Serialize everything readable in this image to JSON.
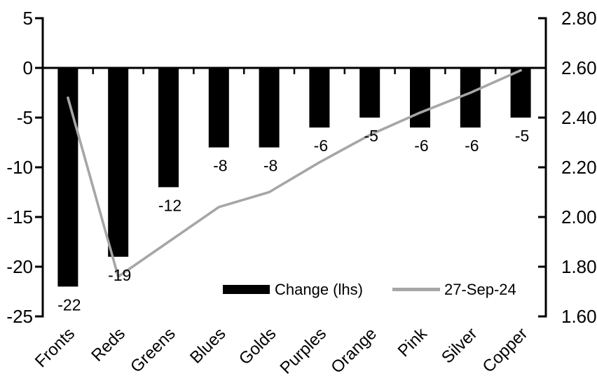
{
  "chart_data": {
    "type": "combo",
    "categories": [
      "Fronts",
      "Reds",
      "Greens",
      "Blues",
      "Golds",
      "Purples",
      "Orange",
      "Pink",
      "Silver",
      "Copper"
    ],
    "series": [
      {
        "name": "Change (lhs)",
        "type": "bar",
        "axis": "left",
        "color": "#000000",
        "values": [
          -22,
          -19,
          -12,
          -8,
          -8,
          -6,
          -5,
          -6,
          -6,
          -5
        ],
        "data_labels": [
          "-22",
          "-19",
          "-12",
          "-8",
          "-8",
          "-6",
          "-5",
          "-6",
          "-6",
          "-5"
        ]
      },
      {
        "name": "27-Sep-24",
        "type": "line",
        "axis": "right",
        "color": "#a6a6a6",
        "values": [
          2.48,
          1.76,
          1.9,
          2.04,
          2.1,
          2.22,
          2.33,
          2.42,
          2.5,
          2.59
        ]
      }
    ],
    "left_axis": {
      "min": -25,
      "max": 5,
      "tick_step": 5,
      "tick_labels": [
        "5",
        "0",
        "-5",
        "-10",
        "-15",
        "-20",
        "-25"
      ]
    },
    "right_axis": {
      "min": 1.6,
      "max": 2.8,
      "tick_step": 0.2,
      "tick_labels": [
        "2.80",
        "2.60",
        "2.40",
        "2.20",
        "2.00",
        "1.80",
        "1.60"
      ]
    },
    "grid": false,
    "legend_position": "inside-bottom",
    "background": "#ffffff",
    "axis_color": "#000000",
    "text_color": "#000000"
  },
  "legend": {
    "bar_label": "Change (lhs)",
    "line_label": "27-Sep-24"
  }
}
